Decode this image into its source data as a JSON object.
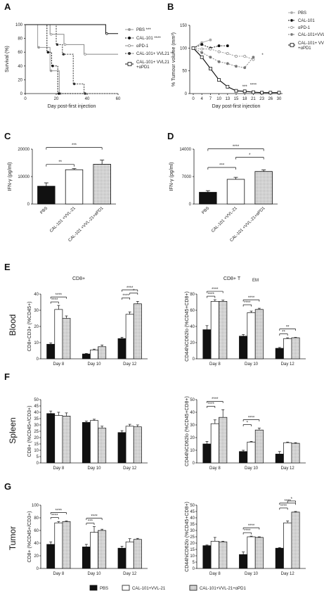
{
  "chart_data": [
    {
      "panel": "A",
      "type": "line",
      "xlabel": "Day post-first injection",
      "ylabel": "Survival (%)",
      "xlim": [
        0,
        60
      ],
      "ylim": [
        0,
        100
      ],
      "xticks": [
        "0",
        "20",
        "40",
        "60"
      ],
      "yticks": [
        "0",
        "20",
        "40",
        "60",
        "80",
        "100"
      ],
      "series": [
        {
          "name": "PBS",
          "sig": "***",
          "x": [
            0,
            8,
            8,
            16,
            16,
            22,
            22,
            60
          ],
          "y": [
            100,
            100,
            67,
            67,
            33,
            33,
            0,
            0
          ]
        },
        {
          "name": "CAL-101",
          "sig": "****",
          "x": [
            0,
            14,
            14,
            17,
            17,
            21,
            21,
            60
          ],
          "y": [
            100,
            100,
            60,
            60,
            40,
            40,
            0,
            0
          ]
        },
        {
          "name": "αPD-1",
          "x": [
            0,
            16,
            16,
            25,
            25,
            38,
            38,
            60
          ],
          "y": [
            100,
            100,
            86,
            86,
            71,
            71,
            57,
            57
          ]
        },
        {
          "name": "CAL-101+ VVL21",
          "sig": "**",
          "x": [
            0,
            20,
            20,
            24,
            24,
            31,
            31,
            38,
            38,
            60
          ],
          "y": [
            100,
            100,
            71,
            71,
            57,
            57,
            14,
            14,
            0,
            0
          ]
        },
        {
          "name": "CAL-101+ VVL21 +αPD1",
          "x": [
            0,
            52,
            52,
            60
          ],
          "y": [
            100,
            100,
            87,
            87
          ]
        }
      ]
    },
    {
      "panel": "B",
      "type": "line",
      "xlabel": "Day post-first injection",
      "ylabel": "% Tumour volume (mm³)",
      "ylim": [
        0,
        150
      ],
      "categories": [
        "0",
        "4",
        "7",
        "10",
        "13",
        "15",
        "18",
        "21",
        "23",
        "26",
        "30"
      ],
      "yticks": [
        "0",
        "50",
        "100",
        "150"
      ],
      "series": [
        {
          "name": "PBS",
          "values": [
            100,
            112,
            118,
            null,
            null,
            null,
            null,
            null,
            null,
            null,
            null
          ]
        },
        {
          "name": "CAL-101",
          "values": [
            100,
            108,
            100,
            105,
            105,
            null,
            null,
            null,
            null,
            null,
            null
          ]
        },
        {
          "name": "αPD-1",
          "values": [
            100,
            98,
            98,
            92,
            88,
            82,
            82,
            75,
            null,
            null,
            null
          ]
        },
        {
          "name": "CAL-101+VVL21",
          "values": [
            100,
            90,
            80,
            70,
            66,
            60,
            57,
            80,
            null,
            null,
            null
          ]
        },
        {
          "name": "CAL-101+ VVL21 +αPD1",
          "values": [
            100,
            80,
            55,
            30,
            15,
            6,
            5,
            3,
            2,
            2,
            2
          ]
        }
      ],
      "annotations": [
        "***",
        "****",
        "*"
      ]
    },
    {
      "panel": "C",
      "type": "bar",
      "ylabel": "IFN-γ (pg/ml)",
      "ylim": [
        0,
        20000
      ],
      "yticks": [
        "0",
        "10000",
        "20000"
      ],
      "categories": [
        "PBS",
        "CAL-101 +VVL-21",
        "CAL-101 +VVL-21+αPD1"
      ],
      "values": [
        6500,
        12500,
        14500
      ],
      "errors": [
        1200,
        400,
        1500
      ],
      "sig": [
        {
          "pair": [
            0,
            1
          ],
          "label": "**"
        },
        {
          "pair": [
            0,
            2
          ],
          "label": "***"
        }
      ]
    },
    {
      "panel": "D",
      "type": "bar",
      "ylabel": "IFN-γ (pg/ml)",
      "ylim": [
        0,
        14000
      ],
      "yticks": [
        "0",
        "7000",
        "14000"
      ],
      "categories": [
        "PBS",
        "CAL-101 +VVL-21",
        "CAL-101 +VVL-21+αPD1"
      ],
      "values": [
        3000,
        6300,
        8300
      ],
      "errors": [
        400,
        500,
        400
      ],
      "sig": [
        {
          "pair": [
            0,
            1
          ],
          "label": "***"
        },
        {
          "pair": [
            1,
            2
          ],
          "label": "*"
        },
        {
          "pair": [
            0,
            2
          ],
          "label": "****"
        }
      ]
    },
    {
      "panel": "E-left",
      "type": "bar",
      "title": "CD8+",
      "row": "Blood",
      "ylabel": "CD8+CD3+ (%CD45+)",
      "ylim": [
        0,
        40
      ],
      "yticks": [
        "0",
        "10",
        "20",
        "30",
        "40"
      ],
      "categories": [
        "Day 8",
        "Day 10",
        "Day 12"
      ],
      "series": [
        {
          "name": "PBS",
          "values": [
            9,
            3,
            12.5
          ],
          "errors": [
            0.8,
            0.3,
            0.8
          ]
        },
        {
          "name": "CAL-101+VVL-21",
          "values": [
            30.5,
            5.5,
            27.5
          ],
          "errors": [
            2.5,
            0.5,
            1.5
          ]
        },
        {
          "name": "CAL-101+VVL-21+αPD1",
          "values": [
            25,
            7.5,
            34
          ],
          "errors": [
            1.5,
            1,
            1.5
          ]
        }
      ],
      "sig": [
        {
          "g": 0,
          "pair": [
            0,
            1
          ],
          "label": "****"
        },
        {
          "g": 0,
          "pair": [
            0,
            2
          ],
          "label": "****"
        },
        {
          "g": 2,
          "pair": [
            0,
            1
          ],
          "label": "****"
        },
        {
          "g": 2,
          "pair": [
            1,
            2
          ],
          "label": "*"
        },
        {
          "g": 2,
          "pair": [
            0,
            2
          ],
          "label": "****"
        }
      ]
    },
    {
      "panel": "E-right",
      "type": "bar",
      "title": "CD8+ T",
      "title_sub": "EM",
      "ylabel": "CD44hiCD62lo (%CD45+CD8+)",
      "ylim": [
        0,
        80
      ],
      "yticks": [
        "0",
        "20",
        "40",
        "60",
        "80"
      ],
      "categories": [
        "Day 8",
        "Day 10",
        "Day 12"
      ],
      "series": [
        {
          "name": "PBS",
          "values": [
            36,
            28,
            13
          ],
          "errors": [
            5,
            2,
            1
          ]
        },
        {
          "name": "CAL-101+VVL-21",
          "values": [
            71,
            57,
            25
          ],
          "errors": [
            2,
            2,
            1
          ]
        },
        {
          "name": "CAL-101+VVL-21+αPD1",
          "values": [
            71,
            61,
            26
          ],
          "errors": [
            1.5,
            1.5,
            0.5
          ]
        }
      ],
      "sig": [
        {
          "g": 0,
          "pair": [
            0,
            1
          ],
          "label": "****"
        },
        {
          "g": 0,
          "pair": [
            0,
            2
          ],
          "label": "****"
        },
        {
          "g": 1,
          "pair": [
            0,
            1
          ],
          "label": "****"
        },
        {
          "g": 1,
          "pair": [
            0,
            2
          ],
          "label": "****"
        },
        {
          "g": 2,
          "pair": [
            0,
            1
          ],
          "label": "**"
        },
        {
          "g": 2,
          "pair": [
            0,
            2
          ],
          "label": "**"
        }
      ]
    },
    {
      "panel": "F-left",
      "type": "bar",
      "row": "Spleen",
      "ylabel": "CD8+ (%CD45+/CD3+)",
      "ylim": [
        0,
        50
      ],
      "yticks": [
        "0",
        "5",
        "10",
        "15",
        "20",
        "25",
        "30",
        "35",
        "40",
        "45",
        "50"
      ],
      "categories": [
        "Day 8",
        "Day 10",
        "Day 12"
      ],
      "series": [
        {
          "name": "PBS",
          "values": [
            39,
            32,
            24
          ],
          "errors": [
            2,
            1,
            1.5
          ]
        },
        {
          "name": "CAL-101+VVL-21",
          "values": [
            37.5,
            33.5,
            29
          ],
          "errors": [
            2.5,
            1,
            1.5
          ]
        },
        {
          "name": "CAL-101+VVL-21+αPD1",
          "values": [
            37,
            27.5,
            28.5
          ],
          "errors": [
            2.5,
            1.5,
            1.5
          ]
        }
      ],
      "sig": []
    },
    {
      "panel": "F-right",
      "type": "bar",
      "ylabel": "CD44hiCD62lo (%CD45+CD8+)",
      "ylim": [
        0,
        50
      ],
      "yticks": [
        "0",
        "10",
        "20",
        "30",
        "40",
        "50"
      ],
      "categories": [
        "Day 8",
        "Day 10",
        "Day 12"
      ],
      "series": [
        {
          "name": "PBS",
          "values": [
            15,
            9,
            7
          ],
          "errors": [
            2,
            1,
            2
          ]
        },
        {
          "name": "CAL-101+VVL-21",
          "values": [
            31,
            16.5,
            16
          ],
          "errors": [
            3,
            0.5,
            0.5
          ]
        },
        {
          "name": "CAL-101+VVL-21+αPD1",
          "values": [
            36,
            26,
            15.5
          ],
          "errors": [
            6,
            1.5,
            0.5
          ]
        }
      ],
      "sig": [
        {
          "g": 0,
          "pair": [
            0,
            1
          ],
          "label": "****"
        },
        {
          "g": 0,
          "pair": [
            0,
            2
          ],
          "label": "****"
        },
        {
          "g": 1,
          "pair": [
            0,
            1
          ],
          "label": "*"
        },
        {
          "g": 1,
          "pair": [
            0,
            2
          ],
          "label": "****"
        }
      ]
    },
    {
      "panel": "G-left",
      "type": "bar",
      "row": "Tumor",
      "ylabel": "CD8+ (%CD45+/CD3+)",
      "ylim": [
        0,
        100
      ],
      "yticks": [
        "0",
        "20",
        "40",
        "60",
        "80",
        "100"
      ],
      "categories": [
        "Day 8",
        "Day 10",
        "Day 12"
      ],
      "series": [
        {
          "name": "PBS",
          "values": [
            38,
            34,
            32
          ],
          "errors": [
            4,
            4,
            3
          ]
        },
        {
          "name": "CAL-101+VVL-21",
          "values": [
            72,
            57,
            42
          ],
          "errors": [
            2,
            9,
            5
          ]
        },
        {
          "name": "CAL-101+VVL-21+αPD1",
          "values": [
            74,
            60,
            46
          ],
          "errors": [
            1,
            2,
            1.5
          ]
        }
      ],
      "sig": [
        {
          "g": 0,
          "pair": [
            0,
            1
          ],
          "label": "****"
        },
        {
          "g": 0,
          "pair": [
            0,
            2
          ],
          "label": "****"
        },
        {
          "g": 1,
          "pair": [
            0,
            1
          ],
          "label": "***"
        },
        {
          "g": 1,
          "pair": [
            0,
            2
          ],
          "label": "****"
        }
      ]
    },
    {
      "panel": "G-right",
      "type": "bar",
      "ylabel": "CD44hiCD62lo (%CD45+CD8+)",
      "ylim": [
        0,
        50
      ],
      "yticks": [
        "0",
        "5",
        "10",
        "15",
        "20",
        "25",
        "30",
        "35",
        "40",
        "45",
        "50"
      ],
      "categories": [
        "Day 8",
        "Day 10",
        "Day 12"
      ],
      "series": [
        {
          "name": "PBS",
          "values": [
            18,
            11,
            16
          ],
          "errors": [
            0.5,
            2,
            0.5
          ]
        },
        {
          "name": "CAL-101+VVL-21",
          "values": [
            21.5,
            25,
            36
          ],
          "errors": [
            3,
            0.5,
            1.5
          ]
        },
        {
          "name": "CAL-101+VVL-21+αPD1",
          "values": [
            21,
            24.5,
            44.5
          ],
          "errors": [
            0.5,
            0.5,
            0.5
          ]
        }
      ],
      "sig": [
        {
          "g": 1,
          "pair": [
            0,
            1
          ],
          "label": "****"
        },
        {
          "g": 1,
          "pair": [
            0,
            2
          ],
          "label": "****"
        },
        {
          "g": 2,
          "pair": [
            0,
            1
          ],
          "label": "****"
        },
        {
          "g": 2,
          "pair": [
            0,
            2
          ],
          "label": "****"
        },
        {
          "g": 2,
          "pair": [
            1,
            2
          ],
          "label": "*"
        }
      ]
    }
  ],
  "panel_labels": [
    "A",
    "B",
    "C",
    "D",
    "E",
    "F",
    "G"
  ],
  "row_labels": [
    "Blood",
    "Spleen",
    "Tumor"
  ],
  "legend": [
    "PBS",
    "CAL-101+VVL-21",
    "CAL-101+VVL-21+αPD1"
  ],
  "colors": {
    "black": "#111111",
    "white": "#ffffff",
    "grey": "#9a9a9a",
    "hatch": "#c8c8c8"
  }
}
